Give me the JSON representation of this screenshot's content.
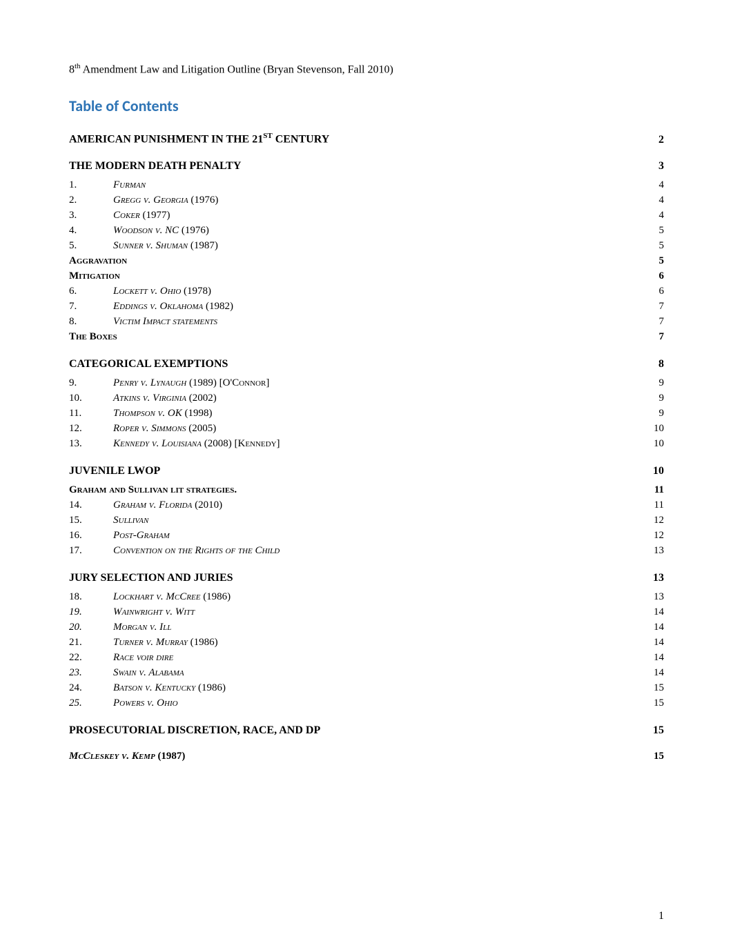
{
  "colors": {
    "toc_title": "#2e74b5",
    "text": "#000000",
    "background": "#ffffff"
  },
  "header": {
    "text_before": "8",
    "superscript": "th",
    "text_after": " Amendment Law and Litigation Outline (Bryan Stevenson, Fall 2010)"
  },
  "toc_title": "Table of Contents",
  "sections": [
    {
      "title": "AMERICAN PUNISHMENT IN THE 21",
      "title_sup": "ST",
      "title_after": " CENTURY",
      "page": "2",
      "items": []
    },
    {
      "title": "THE MODERN DEATH PENALTY",
      "page": "3",
      "items": [
        {
          "num": "1.",
          "label_sc": "Furman",
          "page": "4"
        },
        {
          "num": "2.",
          "label_sc": "Gregg v. Georgia",
          "label_after": " (1976)",
          "page": "4"
        },
        {
          "num": "3.",
          "label_sc": "Coker",
          "label_after": " (1977)",
          "page": "4"
        },
        {
          "num": "4.",
          "label_sc": "Woodson v. NC",
          "label_after": " (1976)",
          "page": "5"
        },
        {
          "num": "5.",
          "label_sc": "Sunner v. Shuman",
          "label_after": " (1987)",
          "page": "5"
        },
        {
          "type": "subsection",
          "label_sc": "Aggravation",
          "bold": true,
          "page": "5",
          "page_bold": true
        },
        {
          "type": "subsection",
          "label_sc": "Mitigation",
          "bold": true,
          "page": "6",
          "page_bold": true
        },
        {
          "num": "6.",
          "label_sc": "Lockett v. Ohio",
          "label_after": " (1978)",
          "page": "6"
        },
        {
          "num": "7.",
          "label_sc": "Eddings v. Oklahoma",
          "label_after": " (1982)",
          "page": "7"
        },
        {
          "num": "8.",
          "label_sc": "Victim Impact statements",
          "page": "7"
        },
        {
          "type": "subsection",
          "label_sc": "The Boxes",
          "bold": true,
          "page": "7",
          "page_bold": true
        }
      ]
    },
    {
      "title": "CATEGORICAL EXEMPTIONS",
      "page": "8",
      "items": [
        {
          "num": "9.",
          "label_sc": "Penry v. Lynaugh",
          "label_after": " (1989) [O'C",
          "label_sc2": "onnor",
          "label_after2": "]",
          "page": "9"
        },
        {
          "num": "10.",
          "label_sc": "Atkins v. Virginia ",
          "label_after": " (2002)",
          "page": "9"
        },
        {
          "num": "11.",
          "label_sc": "Thompson v. OK",
          "label_after": " (1998)",
          "page": "9"
        },
        {
          "num": "12.",
          "label_sc": "Roper v. Simmons",
          "label_after": " (2005)",
          "page": "10"
        },
        {
          "num": "13.",
          "label_sc": "Kennedy v. Louisiana",
          "label_after": " (2008) [K",
          "label_sc2": "ennedy",
          "label_after2": "]",
          "page": "10"
        }
      ]
    },
    {
      "title": "JUVENILE LWOP",
      "page": "10",
      "items": [
        {
          "type": "subsection",
          "label_sc": "Graham and Sullivan lit strategies",
          "label_after": ".",
          "bold": true,
          "page": "11",
          "page_bold": true
        },
        {
          "num": "14.",
          "label_sc": "Graham v. Florida",
          "label_after": " (2010)",
          "page": "11"
        },
        {
          "num": "15.",
          "label_sc": "Sullivan",
          "page": "12"
        },
        {
          "num": "16.",
          "label_sc": "Post-Graham",
          "page": "12"
        },
        {
          "num": "17.",
          "label_sc": "Convention on the Rights of the Child",
          "page": "13"
        }
      ]
    },
    {
      "title": "JURY SELECTION AND JURIES",
      "page": "13",
      "items": [
        {
          "num": "18.",
          "label_sc": "Lockhart v. McCree",
          "label_after": " (1986)",
          "page": "13"
        },
        {
          "num": "19.",
          "num_italic": true,
          "label_sc": "Wainwright v. Witt",
          "page": "14"
        },
        {
          "num": "20.",
          "num_italic": true,
          "label_sc": "Morgan v. Ill",
          "page": "14"
        },
        {
          "num": "21.",
          "label_sc": "Turner v. Murray",
          "label_after": " (1986)",
          "page": "14"
        },
        {
          "num": "22.",
          "label_sc": "Race voir dire",
          "page": "14"
        },
        {
          "num": "23.",
          "num_italic": true,
          "label_sc": "Swain v. Alabama",
          "page": "14"
        },
        {
          "num": "24.",
          "label_sc": "Batson v. Kentucky ",
          "label_after": " (1986)",
          "page": "15"
        },
        {
          "num": "25.",
          "num_italic": true,
          "label_sc": "Powers v. Ohio",
          "page": "15"
        }
      ]
    },
    {
      "title": "PROSECUTORIAL DISCRETION, RACE, AND DP",
      "page": "15",
      "items": []
    },
    {
      "type": "subsection-bold",
      "label_sc": "McCleskey v. Kemp",
      "label_after": " (1987)",
      "page": "15"
    }
  ],
  "page_number": "1"
}
